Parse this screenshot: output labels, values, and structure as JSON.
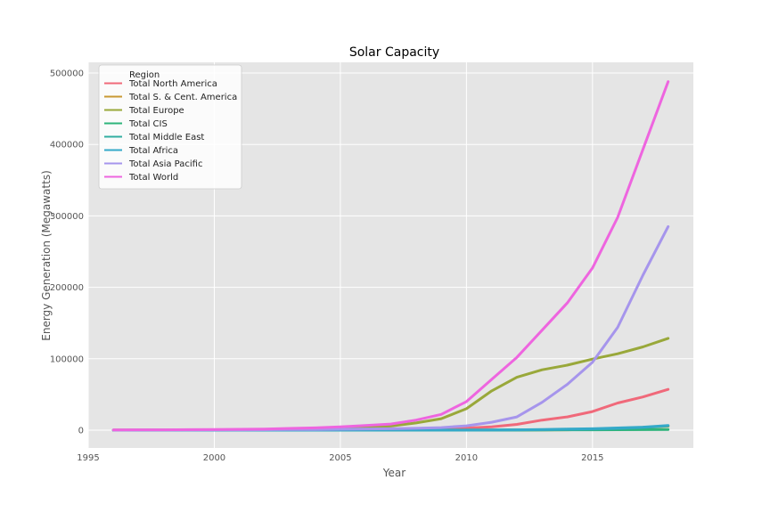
{
  "chart_data": {
    "type": "line",
    "title": "Solar Capacity",
    "xlabel": "Year",
    "ylabel": "Energy Generation (Megawatts)",
    "xlim": [
      1995,
      2019
    ],
    "ylim": [
      -25000,
      515000
    ],
    "x_ticks": [
      "1995",
      "2000",
      "2005",
      "2010",
      "2015"
    ],
    "y_ticks": [
      "0",
      "100000",
      "200000",
      "300000",
      "400000",
      "500000"
    ],
    "grid": true,
    "legend": {
      "title": "Region",
      "placement": "top-left"
    },
    "x": [
      1996,
      1997,
      1998,
      1999,
      2000,
      2001,
      2002,
      2003,
      2004,
      2005,
      2006,
      2007,
      2008,
      2009,
      2010,
      2011,
      2012,
      2013,
      2014,
      2015,
      2016,
      2017,
      2018
    ],
    "series": [
      {
        "name": "Total North America",
        "color": "#f0697a",
        "values": [
          100,
          120,
          140,
          160,
          200,
          250,
          300,
          400,
          500,
          600,
          800,
          1000,
          1300,
          1900,
          2900,
          4600,
          8000,
          14000,
          18500,
          26000,
          38000,
          46500,
          57000
        ]
      },
      {
        "name": "Total S. & Cent. America",
        "color": "#c89932",
        "values": [
          0,
          0,
          0,
          0,
          0,
          0,
          0,
          0,
          0,
          0,
          0,
          0,
          10,
          20,
          40,
          60,
          100,
          200,
          500,
          1200,
          2500,
          3800,
          5500
        ]
      },
      {
        "name": "Total Europe",
        "color": "#99a83a",
        "values": [
          100,
          150,
          200,
          300,
          400,
          500,
          700,
          1200,
          1800,
          2800,
          4000,
          5700,
          10000,
          16000,
          30000,
          55000,
          74000,
          84500,
          91000,
          99500,
          107000,
          116500,
          128500
        ]
      },
      {
        "name": "Total CIS",
        "color": "#2db47b",
        "values": [
          0,
          0,
          0,
          0,
          0,
          0,
          0,
          0,
          0,
          0,
          0,
          0,
          0,
          0,
          0,
          10,
          50,
          200,
          400,
          500,
          600,
          700,
          1000
        ]
      },
      {
        "name": "Total Middle East",
        "color": "#31aea0",
        "values": [
          0,
          0,
          0,
          0,
          0,
          0,
          0,
          0,
          0,
          0,
          0,
          10,
          20,
          40,
          60,
          100,
          200,
          400,
          700,
          1200,
          2000,
          3500,
          6000
        ]
      },
      {
        "name": "Total Africa",
        "color": "#34a9c9",
        "values": [
          0,
          0,
          0,
          0,
          0,
          0,
          0,
          0,
          0,
          10,
          20,
          40,
          60,
          80,
          120,
          200,
          400,
          1000,
          1500,
          2000,
          3000,
          4200,
          6500
        ]
      },
      {
        "name": "Total Asia Pacific",
        "color": "#a695ec",
        "values": [
          100,
          150,
          200,
          300,
          400,
          500,
          600,
          800,
          1000,
          1300,
          1700,
          2000,
          2500,
          3500,
          6000,
          11000,
          18500,
          39000,
          64000,
          95000,
          144000,
          217000,
          285000
        ]
      },
      {
        "name": "Total World",
        "color": "#ee65df",
        "values": [
          300,
          400,
          500,
          700,
          900,
          1200,
          1600,
          2400,
          3200,
          4600,
          6400,
          8500,
          14000,
          22000,
          40000,
          71000,
          102000,
          140000,
          178000,
          227000,
          298000,
          393000,
          488000
        ]
      }
    ]
  }
}
